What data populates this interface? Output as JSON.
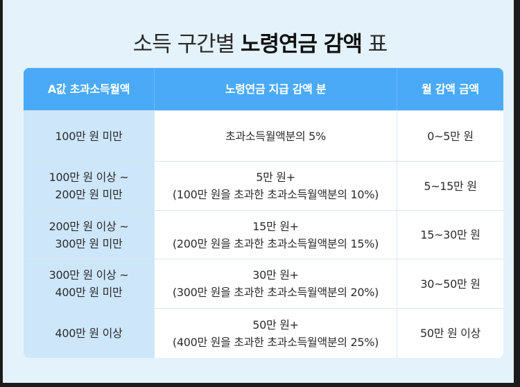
{
  "title": {
    "regular": "소득 구간별",
    "bold": "노령연금 감액",
    "suffix": "표"
  },
  "table": {
    "headers": [
      "A값 초과소득월액",
      "노령연금 지급 감액 분",
      "월 감액 금액"
    ],
    "rows": [
      {
        "range": [
          "100만 원 미만"
        ],
        "deduction": [
          "초과소득월액분의 5%"
        ],
        "amount": "0~5만 원"
      },
      {
        "range": [
          "100만 원 이상 ~",
          "200만 원 미만"
        ],
        "deduction": [
          "5만 원+",
          "(100만 원을 초과한 초과소득월액분의 10%)"
        ],
        "amount": "5~15만 원"
      },
      {
        "range": [
          "200만 원 이상 ~",
          "300만 원 미만"
        ],
        "deduction": [
          "15만 원+",
          "(200만 원을 초과한 초과소득월액분의 15%)"
        ],
        "amount": "15~30만 원"
      },
      {
        "range": [
          "300만 원 이상 ~",
          "400만 원 미만"
        ],
        "deduction": [
          "30만 원+",
          "(300만 원을 초과한 초과소득월액분의 20%)"
        ],
        "amount": "30~50만 원"
      },
      {
        "range": [
          "400만 원 이상"
        ],
        "deduction": [
          "50만 원+",
          "(400만 원을 초과한 초과소득월액분의 25%)"
        ],
        "amount": "50만 원 이상"
      }
    ]
  },
  "colors": {
    "background": "#e4f2fb",
    "header": "#4aaaf8",
    "first_column": "#cde6fa"
  }
}
